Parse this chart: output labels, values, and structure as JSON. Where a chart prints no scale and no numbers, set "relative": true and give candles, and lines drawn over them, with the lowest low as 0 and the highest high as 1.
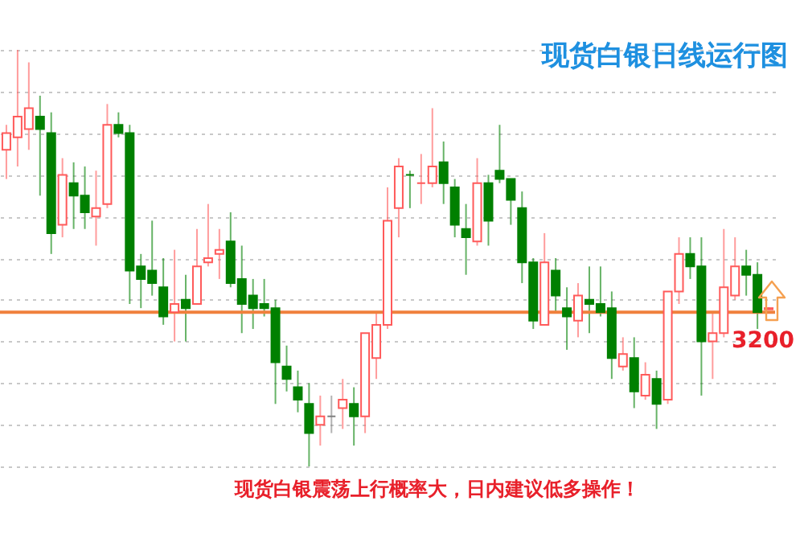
{
  "chart_data": {
    "type": "candlestick",
    "title": "现货白银日线运行图",
    "relative": true,
    "grid": true,
    "annotations": [
      "现货白银震荡上行概率大，日内建议低多操作！",
      "3200"
    ],
    "ref_lines": [
      {
        "axis": "y",
        "value": 0.37,
        "color": "#f0803c"
      }
    ],
    "categories": [
      null,
      null,
      null,
      null,
      null,
      null,
      null,
      null,
      null,
      null,
      null,
      null,
      null,
      null,
      null,
      null,
      null,
      null,
      null,
      null,
      null,
      null,
      null,
      null,
      null,
      null,
      null,
      null,
      null,
      null,
      null,
      null,
      null,
      null,
      null,
      null,
      null,
      null,
      null,
      null,
      null,
      null,
      null,
      null,
      null,
      null,
      null,
      null,
      null,
      null,
      null,
      null,
      null,
      null,
      null,
      null,
      null,
      null,
      null,
      null,
      null,
      null,
      null,
      null,
      null,
      null,
      null,
      null,
      null
    ],
    "ohlc": [
      [
        0.76,
        0.82,
        0.69,
        0.8
      ],
      [
        0.79,
        1,
        0.72,
        0.84
      ],
      [
        0.81,
        0.97,
        0.76,
        0.86
      ],
      [
        0.84,
        0.89,
        0.65,
        0.81
      ],
      [
        0.8,
        0.85,
        0.51,
        0.56
      ],
      [
        0.58,
        0.74,
        0.55,
        0.7
      ],
      [
        0.68,
        0.73,
        0.57,
        0.65
      ],
      [
        0.65,
        0.72,
        0.57,
        0.61
      ],
      [
        0.6,
        0.71,
        0.53,
        0.62
      ],
      [
        0.63,
        0.87,
        0.62,
        0.82
      ],
      [
        0.82,
        0.85,
        0.79,
        0.8
      ],
      [
        0.8,
        0.82,
        0.39,
        0.47
      ],
      [
        0.48,
        0.51,
        0.38,
        0.45
      ],
      [
        0.47,
        0.59,
        0.41,
        0.44
      ],
      [
        0.43,
        0.5,
        0.34,
        0.36
      ],
      [
        0.37,
        0.52,
        0.3,
        0.39
      ],
      [
        0.4,
        0.46,
        0.3,
        0.38
      ],
      [
        0.39,
        0.57,
        0.39,
        0.48
      ],
      [
        0.49,
        0.63,
        0.48,
        0.5
      ],
      [
        0.51,
        0.57,
        0.45,
        0.52
      ],
      [
        0.54,
        0.61,
        0.43,
        0.44
      ],
      [
        0.45,
        0.53,
        0.32,
        0.39
      ],
      [
        0.41,
        0.45,
        0.33,
        0.38
      ],
      [
        0.39,
        0.45,
        0.36,
        0.38
      ],
      [
        0.38,
        0.4,
        0.15,
        0.25
      ],
      [
        0.24,
        0.29,
        0.18,
        0.21
      ],
      [
        0.19,
        0.23,
        0.13,
        0.16
      ],
      [
        0.15,
        0.2,
        0,
        0.08
      ],
      [
        0.1,
        0.17,
        0.05,
        0.12
      ],
      [
        0.12,
        0.17,
        0.08,
        0.12
      ],
      [
        0.14,
        0.21,
        0.09,
        0.16
      ],
      [
        0.15,
        0.19,
        0.05,
        0.12
      ],
      [
        0.12,
        0.32,
        0.08,
        0.32
      ],
      [
        0.26,
        0.37,
        0.21,
        0.34
      ],
      [
        0.34,
        0.67,
        0.33,
        0.59
      ],
      [
        0.62,
        0.74,
        0.55,
        0.72
      ],
      [
        0.7,
        0.71,
        0.62,
        0.7
      ],
      [
        0.68,
        0.75,
        0.63,
        0.68
      ],
      [
        0.68,
        0.86,
        0.67,
        0.72
      ],
      [
        0.73,
        0.78,
        0.63,
        0.68
      ],
      [
        0.67,
        0.69,
        0.55,
        0.58
      ],
      [
        0.57,
        0.63,
        0.46,
        0.55
      ],
      [
        0.54,
        0.74,
        0.53,
        0.68
      ],
      [
        0.68,
        0.7,
        0.53,
        0.59
      ],
      [
        0.71,
        0.82,
        0.68,
        0.69
      ],
      [
        0.69,
        0.69,
        0.58,
        0.64
      ],
      [
        0.62,
        0.66,
        0.44,
        0.49
      ],
      [
        0.49,
        0.5,
        0.33,
        0.35
      ],
      [
        0.34,
        0.56,
        0.34,
        0.49
      ],
      [
        0.47,
        0.5,
        0.37,
        0.41
      ],
      [
        0.38,
        0.43,
        0.28,
        0.36
      ],
      [
        0.35,
        0.44,
        0.31,
        0.41
      ],
      [
        0.4,
        0.48,
        0.32,
        0.39
      ],
      [
        0.39,
        0.48,
        0.36,
        0.37
      ],
      [
        0.38,
        0.42,
        0.21,
        0.26
      ],
      [
        0.24,
        0.31,
        0.23,
        0.27
      ],
      [
        0.26,
        0.31,
        0.14,
        0.18
      ],
      [
        0.17,
        0.25,
        0.16,
        0.22
      ],
      [
        0.21,
        0.23,
        0.09,
        0.15
      ],
      [
        0.16,
        0.42,
        0.15,
        0.42
      ],
      [
        0.42,
        0.55,
        0.39,
        0.51
      ],
      [
        0.51,
        0.55,
        0.45,
        0.48
      ],
      [
        0.48,
        0.55,
        0.17,
        0.3
      ],
      [
        0.3,
        0.37,
        0.21,
        0.32
      ],
      [
        0.32,
        0.57,
        0.31,
        0.43
      ],
      [
        0.41,
        0.55,
        0.4,
        0.48
      ],
      [
        0.48,
        0.52,
        0.41,
        0.46
      ],
      [
        0.46,
        0.49,
        0.33,
        0.37
      ],
      [
        0.377,
        0.382,
        0.376,
        0.38
      ]
    ],
    "colors": [
      "#ff5a5a",
      "#ff5a5a",
      "#ff5a5a",
      "#008000",
      "#008000",
      "#ff5a5a",
      "#008000",
      "#008000",
      "#ff5a5a",
      "#ff5a5a",
      "#008000",
      "#008000",
      "#008000",
      "#008000",
      "#008000",
      "#ff5a5a",
      "#008000",
      "#ff5a5a",
      "#ff5a5a",
      "#ff5a5a",
      "#008000",
      "#008000",
      "#008000",
      "#008000",
      "#008000",
      "#008000",
      "#008000",
      "#008000",
      "#ff5a5a",
      "#808080",
      "#ff5a5a",
      "#008000",
      "#ff5a5a",
      "#ff5a5a",
      "#ff5a5a",
      "#ff5a5a",
      "#008000",
      "#ff5a5a",
      "#ff5a5a",
      "#008000",
      "#008000",
      "#008000",
      "#ff5a5a",
      "#008000",
      "#008000",
      "#008000",
      "#008000",
      "#008000",
      "#ff5a5a",
      "#008000",
      "#008000",
      "#ff5a5a",
      "#008000",
      "#008000",
      "#008000",
      "#ff5a5a",
      "#008000",
      "#ff5a5a",
      "#008000",
      "#ff5a5a",
      "#ff5a5a",
      "#008000",
      "#008000",
      "#ff5a5a",
      "#ff5a5a",
      "#ff5a5a",
      "#008000",
      "#008000",
      "#ff5a5a"
    ]
  }
}
